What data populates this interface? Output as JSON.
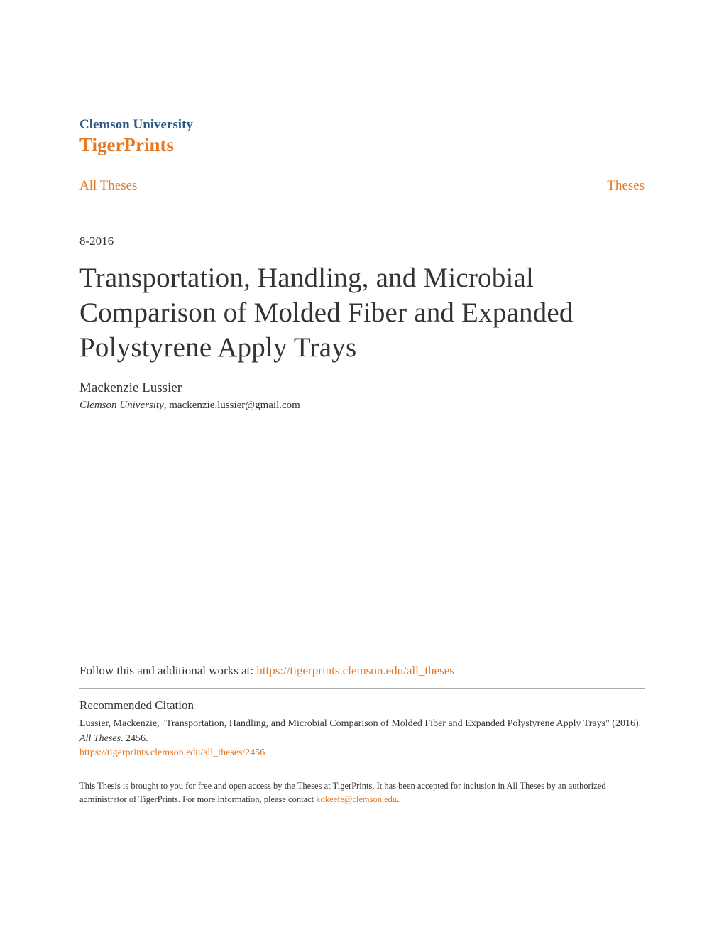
{
  "header": {
    "institution": "Clemson University",
    "repository": "TigerPrints"
  },
  "nav": {
    "left_link": "All Theses",
    "right_link": "Theses"
  },
  "document": {
    "date": "8-2016",
    "title": "Transportation, Handling, and Microbial Comparison of Molded Fiber and Expanded Polystyrene Apply Trays",
    "author_name": "Mackenzie Lussier",
    "author_institution": "Clemson University",
    "author_email": "mackenzie.lussier@gmail.com"
  },
  "follow": {
    "prefix": "Follow this and additional works at: ",
    "url": "https://tigerprints.clemson.edu/all_theses"
  },
  "citation": {
    "heading": "Recommended Citation",
    "text_part1": "Lussier, Mackenzie, \"Transportation, Handling, and Microbial Comparison of Molded Fiber and Expanded Polystyrene Apply Trays\" (2016). ",
    "text_italic": "All Theses",
    "text_part2": ". 2456.",
    "url": "https://tigerprints.clemson.edu/all_theses/2456"
  },
  "access": {
    "text_part1": "This Thesis is brought to you for free and open access by the Theses at TigerPrints. It has been accepted for inclusion in All Theses by an authorized administrator of TigerPrints. For more information, please contact ",
    "contact_email": "kokeefe@clemson.edu",
    "text_part2": "."
  },
  "colors": {
    "institution_blue": "#2c5985",
    "orange": "#e87722",
    "text": "#333333",
    "divider": "#aaaaaa",
    "background": "#ffffff"
  }
}
